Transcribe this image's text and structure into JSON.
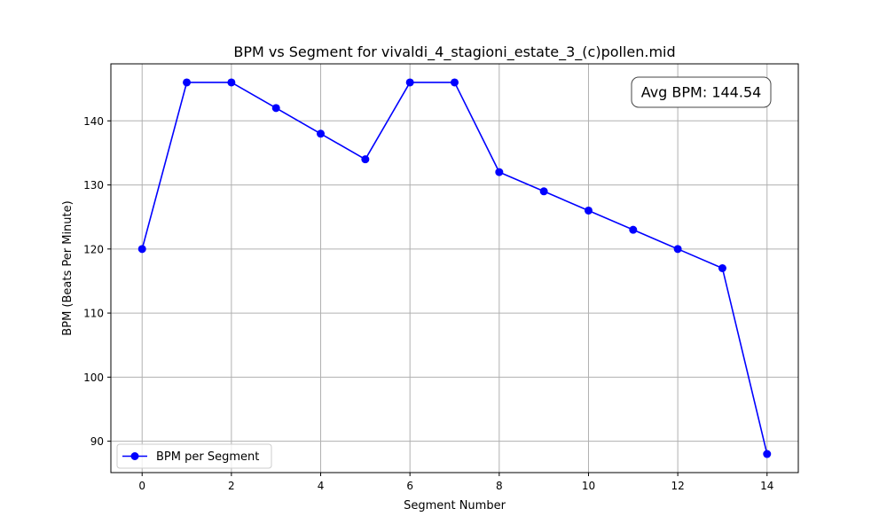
{
  "chart_data": {
    "type": "line",
    "title": "BPM vs Segment for vivaldi_4_stagioni_estate_3_(c)pollen.mid",
    "xlabel": "Segment Number",
    "ylabel": "BPM (Beats Per Minute)",
    "x": [
      0,
      1,
      2,
      3,
      4,
      5,
      6,
      7,
      8,
      9,
      10,
      11,
      12,
      13,
      14
    ],
    "series": [
      {
        "name": "BPM per Segment",
        "color": "#0000ff",
        "marker": "circle",
        "values": [
          120,
          146,
          146,
          142,
          138,
          134,
          146,
          146,
          132,
          129,
          126,
          123,
          120,
          117,
          88
        ]
      }
    ],
    "xlim": [
      -0.7,
      14.7
    ],
    "ylim": [
      85.1,
      148.9
    ],
    "xticks": [
      0,
      2,
      4,
      6,
      8,
      10,
      12,
      14
    ],
    "yticks": [
      90,
      100,
      110,
      120,
      130,
      140
    ],
    "grid": true,
    "legend_position": "lower-left",
    "annotation": {
      "text": "Avg BPM: 144.54",
      "position": "top-right"
    }
  }
}
